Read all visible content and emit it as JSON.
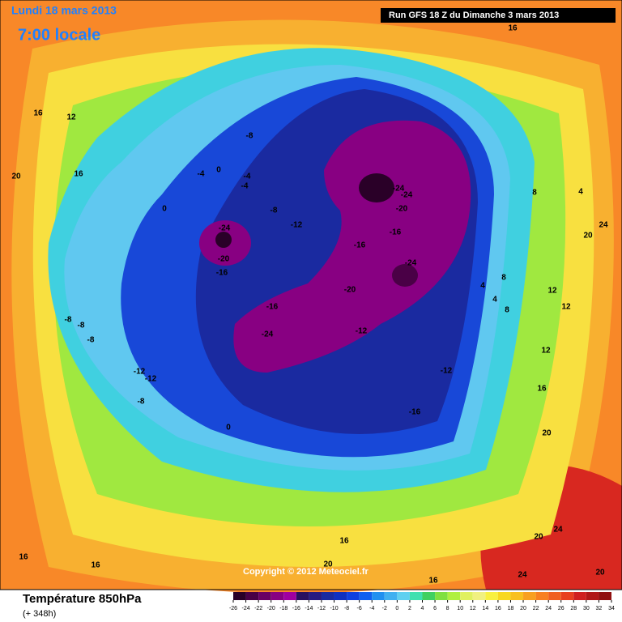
{
  "header": {
    "date": "Lundi 18 mars 2013",
    "time": "7:00 locale",
    "run": "Run GFS 18 Z du Dimanche 3 mars 2013"
  },
  "footer": {
    "title": "Température 850hPa",
    "lead": "(+ 348h)",
    "copyright": "Copyright © 2012 Meteociel.fr"
  },
  "legend": {
    "ticks": [
      -26,
      -24,
      -22,
      -20,
      -18,
      -16,
      -14,
      -12,
      -10,
      -8,
      -6,
      -4,
      -2,
      0,
      2,
      4,
      6,
      8,
      10,
      12,
      14,
      16,
      18,
      20,
      22,
      24,
      26,
      28,
      30,
      32,
      34
    ],
    "colors": [
      "#2a0028",
      "#4a0046",
      "#6a0064",
      "#880082",
      "#a000a0",
      "#2a1060",
      "#281a80",
      "#1a2aa0",
      "#1030c0",
      "#1040e0",
      "#1060f0",
      "#2090f0",
      "#40b0f0",
      "#60d0f0",
      "#40e0b0",
      "#40d060",
      "#80e040",
      "#b0f040",
      "#e0f060",
      "#f0f080",
      "#f8f040",
      "#f8d820",
      "#f8c020",
      "#f8a020",
      "#f88020",
      "#f06020",
      "#e84020",
      "#d02020",
      "#b01818",
      "#901010"
    ]
  },
  "contour_labels": [
    "16",
    "12",
    "20",
    "16",
    "16",
    "-8",
    "-4",
    "0",
    "-4",
    "-4",
    "0",
    "-8",
    "-12",
    "-24",
    "-20",
    "-16",
    "-24",
    "-24",
    "-20",
    "-16",
    "-16",
    "-24",
    "-20",
    "-16",
    "-24",
    "-12",
    "-12",
    "-16",
    "-12",
    "-12",
    "-8",
    "-8",
    "-8",
    "-8",
    "0",
    "8",
    "4",
    "24",
    "20",
    "4",
    "8",
    "4",
    "8",
    "12",
    "12",
    "12",
    "16",
    "20",
    "24",
    "20",
    "24",
    "20",
    "16",
    "20",
    "16",
    "16",
    "16"
  ]
}
